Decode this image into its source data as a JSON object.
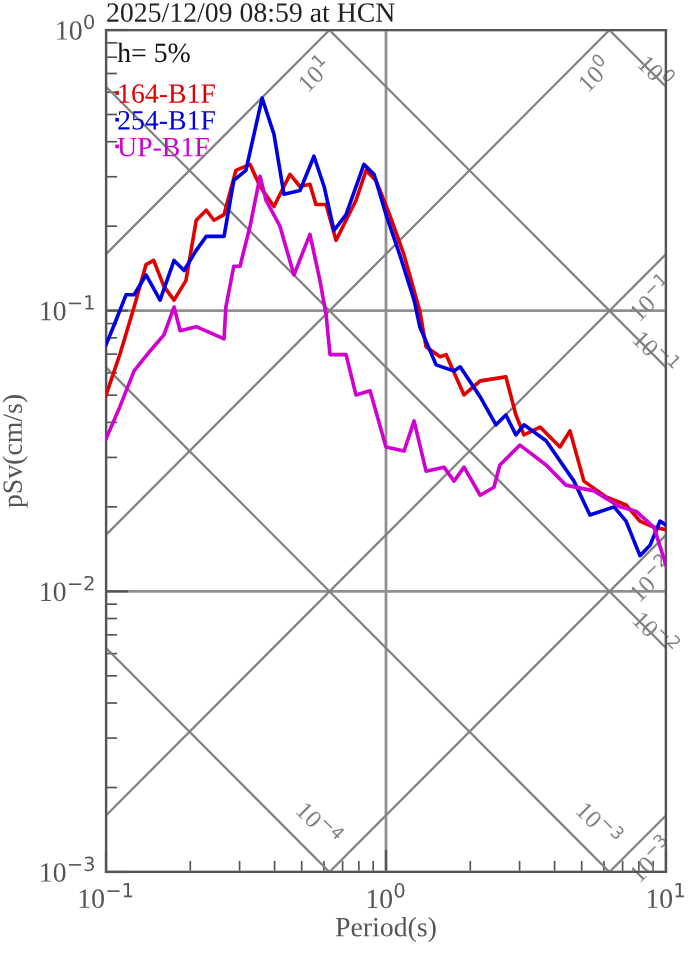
{
  "chart_data": {
    "type": "line",
    "title": "2025/12/09 08:59 at HCN",
    "xlabel": "Period(s)",
    "ylabel": "pSv(cm/s)",
    "annotations": [
      "h= 5%"
    ],
    "log": "xy",
    "grid": true,
    "legend": "top left",
    "xlim": [
      0.1,
      10
    ],
    "ylim": [
      0.001,
      1
    ],
    "xticks": [
      {
        "value": 0.1,
        "label": "10$^{−1}$"
      },
      {
        "value": 1,
        "label": "10$^{0}$"
      },
      {
        "value": 10,
        "label": "10$^{1}$"
      }
    ],
    "yticks": [
      {
        "value": 0.001,
        "label": "10$^{−3}$"
      },
      {
        "value": 0.01,
        "label": "10$^{−2}$"
      },
      {
        "value": 0.1,
        "label": "10$^{−1}$"
      },
      {
        "value": 1,
        "label": "10$^{0}$"
      }
    ],
    "series": [
      {
        "name": "164-B1F",
        "color": "#e00000",
        "x": [
          0.1,
          0.112,
          0.126,
          0.139,
          0.148,
          0.161,
          0.175,
          0.193,
          0.21,
          0.228,
          0.243,
          0.264,
          0.291,
          0.327,
          0.355,
          0.398,
          0.454,
          0.493,
          0.535,
          0.562,
          0.611,
          0.663,
          0.72,
          0.781,
          0.849,
          0.921,
          1.03,
          1.16,
          1.32,
          1.39,
          1.56,
          1.64,
          1.9,
          2.17,
          2.68,
          2.91,
          3.11,
          3.55,
          4.18,
          4.54,
          5.09,
          6.11,
          7.2,
          8.07,
          9.06,
          10
        ],
        "values": [
          0.05,
          0.0697,
          0.103,
          0.146,
          0.151,
          0.122,
          0.109,
          0.128,
          0.21,
          0.228,
          0.21,
          0.22,
          0.316,
          0.332,
          0.277,
          0.235,
          0.306,
          0.277,
          0.282,
          0.239,
          0.239,
          0.178,
          0.21,
          0.247,
          0.316,
          0.291,
          0.22,
          0.158,
          0.1,
          0.0744,
          0.0685,
          0.0697,
          0.0501,
          0.0562,
          0.0581,
          0.0425,
          0.0361,
          0.0385,
          0.0327,
          0.0373,
          0.0247,
          0.0217,
          0.0203,
          0.0178,
          0.0169,
          0.0166
        ]
      },
      {
        "name": "254-B1F",
        "color": "#0000e0",
        "x": [
          0.1,
          0.107,
          0.118,
          0.126,
          0.139,
          0.156,
          0.175,
          0.19,
          0.21,
          0.228,
          0.264,
          0.286,
          0.316,
          0.361,
          0.398,
          0.432,
          0.493,
          0.553,
          0.601,
          0.652,
          0.72,
          0.834,
          0.906,
          1.0,
          1.12,
          1.26,
          1.32,
          1.51,
          1.75,
          1.84,
          2.17,
          2.47,
          2.68,
          2.91,
          3.11,
          3.73,
          4.69,
          5.35,
          6.52,
          7.2,
          8.07,
          8.77,
          9.52,
          10
        ],
        "values": [
          0.0756,
          0.0891,
          0.114,
          0.114,
          0.134,
          0.109,
          0.151,
          0.139,
          0.164,
          0.184,
          0.184,
          0.291,
          0.316,
          0.572,
          0.425,
          0.26,
          0.268,
          0.355,
          0.277,
          0.193,
          0.22,
          0.332,
          0.306,
          0.22,
          0.158,
          0.109,
          0.0877,
          0.0641,
          0.061,
          0.0631,
          0.0493,
          0.0392,
          0.0425,
          0.0361,
          0.0392,
          0.0344,
          0.0247,
          0.0187,
          0.02,
          0.0178,
          0.0134,
          0.0146,
          0.0178,
          0.0172
        ]
      },
      {
        "name": "UP-B1F",
        "color": "#d000d0",
        "x": [
          0.1,
          0.112,
          0.126,
          0.144,
          0.161,
          0.175,
          0.184,
          0.21,
          0.264,
          0.268,
          0.286,
          0.301,
          0.327,
          0.355,
          0.373,
          0.418,
          0.469,
          0.535,
          0.581,
          0.611,
          0.631,
          0.72,
          0.781,
          0.877,
          1.0,
          1.16,
          1.26,
          1.39,
          1.61,
          1.75,
          1.9,
          2.17,
          2.43,
          2.55,
          3.01,
          3.73,
          4.39,
          5.53,
          6.85,
          7.81,
          9.06,
          10
        ],
        "values": [
          0.0349,
          0.0454,
          0.061,
          0.072,
          0.082,
          0.103,
          0.0848,
          0.0877,
          0.0794,
          0.103,
          0.144,
          0.144,
          0.2,
          0.301,
          0.247,
          0.2,
          0.134,
          0.187,
          0.128,
          0.0968,
          0.0697,
          0.0697,
          0.0501,
          0.0518,
          0.0327,
          0.0316,
          0.0405,
          0.0268,
          0.0277,
          0.0247,
          0.0277,
          0.022,
          0.0235,
          0.0282,
          0.0332,
          0.0282,
          0.0239,
          0.0228,
          0.02,
          0.0193,
          0.0169,
          0.0124
        ]
      },
      {
        "name": "10$^{−4}$",
        "color": "#808080",
        "x": [
          0.1,
          0.628
        ],
        "values": [
          0.00628,
          0.001
        ]
      },
      {
        "name": "10$^{−3}$",
        "color": "#808080",
        "x": [
          0.1,
          6.28
        ],
        "values": [
          0.0628,
          0.001
        ]
      },
      {
        "name": "10$^{−2}$",
        "color": "#808080",
        "x": [
          0.1,
          10
        ],
        "values": [
          0.628,
          0.00628
        ]
      },
      {
        "name": "10$^{−1}$",
        "color": "#808080",
        "x": [
          0.628,
          10
        ],
        "values": [
          1,
          0.0628
        ]
      },
      {
        "name": "10$^{0}$",
        "color": "#808080",
        "x": [
          6.28,
          10
        ],
        "values": [
          1,
          0.628
        ]
      },
      {
        "name": "10$^{−3}$",
        "color": "#808080",
        "x": [
          6.28,
          10
        ],
        "values": [
          0.001,
          0.00159
        ]
      },
      {
        "name": "10$^{−2}$",
        "color": "#808080",
        "x": [
          0.628,
          10
        ],
        "values": [
          0.001,
          0.0159
        ]
      },
      {
        "name": "10$^{−1}$",
        "color": "#808080",
        "x": [
          0.1,
          10
        ],
        "values": [
          0.00159,
          0.159
        ]
      },
      {
        "name": "10$^{0}$",
        "color": "#808080",
        "x": [
          0.1,
          6.28
        ],
        "values": [
          0.0159,
          1
        ]
      },
      {
        "name": "10$^{1}$",
        "color": "#808080",
        "x": [
          0.1,
          0.628
        ],
        "values": [
          0.159,
          1
        ]
      }
    ]
  }
}
